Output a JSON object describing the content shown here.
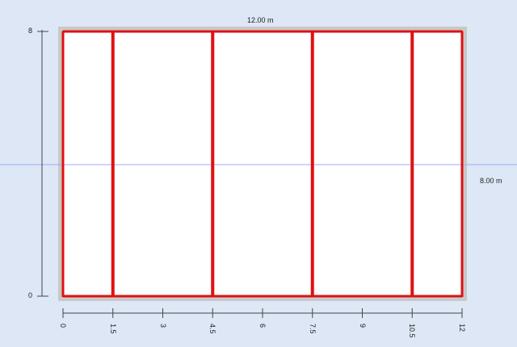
{
  "plan": {
    "width_label": "12.00 m",
    "depth_label": "8.00 m",
    "width_m": 12,
    "depth_m": 8,
    "frame_color": "#e01010",
    "slab_color": "#c8c8c8",
    "guide_color": "#9fa8ff",
    "frame_positions_m": [
      0,
      1.5,
      4.5,
      7.5,
      10.5,
      12
    ]
  },
  "x_axis": {
    "ticks": [
      {
        "value": 0,
        "label": "0"
      },
      {
        "value": 1.5,
        "label": "1.5"
      },
      {
        "value": 3,
        "label": "3"
      },
      {
        "value": 4.5,
        "label": "4.5"
      },
      {
        "value": 6,
        "label": "6"
      },
      {
        "value": 7.5,
        "label": "7.5"
      },
      {
        "value": 9,
        "label": "9"
      },
      {
        "value": 10.5,
        "label": "10.5"
      },
      {
        "value": 12,
        "label": "12"
      }
    ]
  },
  "y_axis": {
    "ticks": [
      {
        "value": 8,
        "label": "8"
      },
      {
        "value": 0,
        "label": "0"
      }
    ]
  }
}
